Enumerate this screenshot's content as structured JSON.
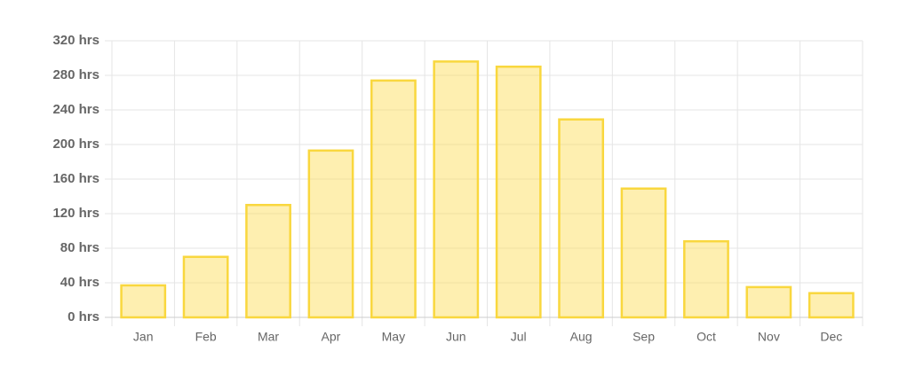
{
  "chart_data": {
    "type": "bar",
    "categories": [
      "Jan",
      "Feb",
      "Mar",
      "Apr",
      "May",
      "Jun",
      "Jul",
      "Aug",
      "Sep",
      "Oct",
      "Nov",
      "Dec"
    ],
    "values": [
      37,
      70,
      130,
      193,
      274,
      296,
      290,
      229,
      149,
      88,
      35,
      28
    ],
    "color": "#f9d73e",
    "fill": "rgba(252, 220, 80, 0.45)",
    "ylim": [
      0,
      320
    ],
    "yticks": [
      {
        "value": 0,
        "label": "0 hrs"
      },
      {
        "value": 40,
        "label": "40 hrs"
      },
      {
        "value": 80,
        "label": "80 hrs"
      },
      {
        "value": 120,
        "label": "120 hrs"
      },
      {
        "value": 160,
        "label": "160 hrs"
      },
      {
        "value": 200,
        "label": "200 hrs"
      },
      {
        "value": 240,
        "label": "240 hrs"
      },
      {
        "value": 280,
        "label": "280 hrs"
      },
      {
        "value": 320,
        "label": "320 hrs"
      }
    ],
    "grid": true
  }
}
